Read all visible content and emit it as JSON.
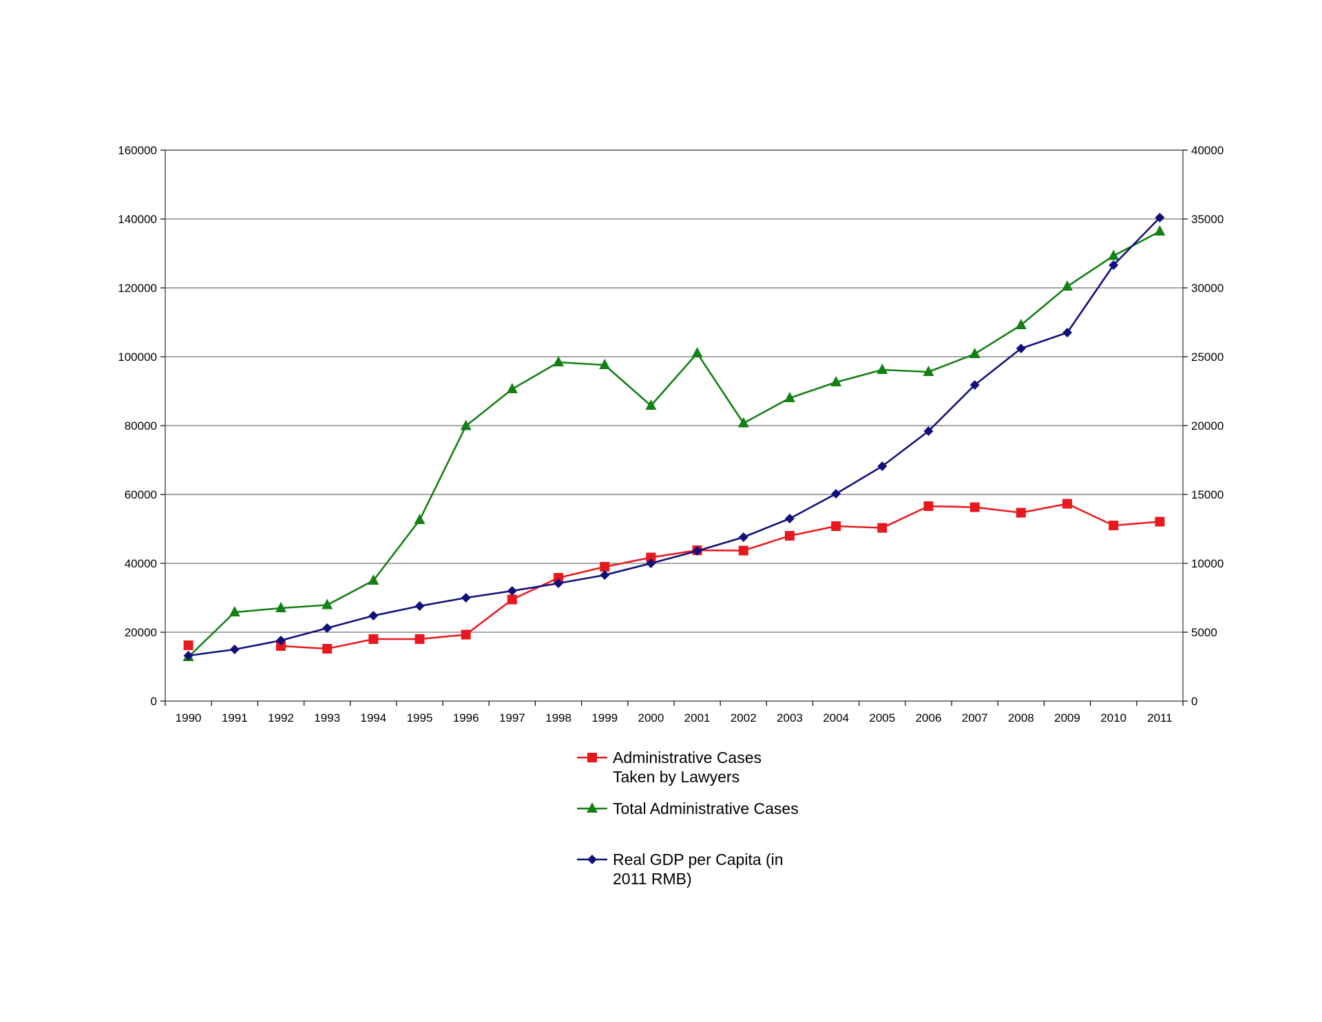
{
  "chart_data": {
    "type": "line",
    "title": "",
    "xlabel": "",
    "ylabel": "",
    "categories": [
      "1990",
      "1991",
      "1992",
      "1993",
      "1994",
      "1995",
      "1996",
      "1997",
      "1998",
      "1999",
      "2000",
      "2001",
      "2002",
      "2003",
      "2004",
      "2005",
      "2006",
      "2007",
      "2008",
      "2009",
      "2010",
      "2011"
    ],
    "y_left": {
      "ylim": [
        0,
        160000
      ],
      "ticks": [
        0,
        20000,
        40000,
        60000,
        80000,
        100000,
        120000,
        140000,
        160000
      ]
    },
    "y_right": {
      "ylim": [
        0,
        40000
      ],
      "ticks": [
        0,
        5000,
        10000,
        15000,
        20000,
        25000,
        30000,
        35000,
        40000
      ]
    },
    "grid": true,
    "legend_position": "bottom-center",
    "series": [
      {
        "name": "Administrative Cases Taken by Lawyers",
        "legend_lines": [
          "Administrative Cases",
          "Taken by Lawyers"
        ],
        "axis": "left",
        "color": "#e8191e",
        "marker": "square",
        "values": [
          16200,
          null,
          16000,
          15200,
          18000,
          18000,
          19300,
          29500,
          35800,
          39000,
          41700,
          43800,
          43700,
          48000,
          50800,
          50300,
          56600,
          56300,
          54700,
          57300,
          51000,
          52100
        ]
      },
      {
        "name": "Total Administrative Cases",
        "legend_lines": [
          "Total Administrative Cases"
        ],
        "axis": "left",
        "color": "#138013",
        "marker": "triangle",
        "values": [
          12800,
          25800,
          27000,
          27900,
          35000,
          52600,
          79900,
          90600,
          98400,
          97600,
          85800,
          101000,
          80700,
          88000,
          92600,
          96200,
          95600,
          100800,
          109200,
          120400,
          129300,
          136400
        ]
      },
      {
        "name": "Real GDP per Capita (in 2011 RMB)",
        "legend_lines": [
          "Real GDP per Capita (in",
          "2011 RMB)"
        ],
        "axis": "right",
        "color": "#10107a",
        "marker": "diamond",
        "values": [
          3300,
          3750,
          4400,
          5300,
          6200,
          6900,
          7500,
          8000,
          8550,
          9150,
          10000,
          10900,
          11900,
          13250,
          15050,
          17050,
          19600,
          22950,
          25600,
          26750,
          31650,
          35100
        ]
      }
    ]
  }
}
